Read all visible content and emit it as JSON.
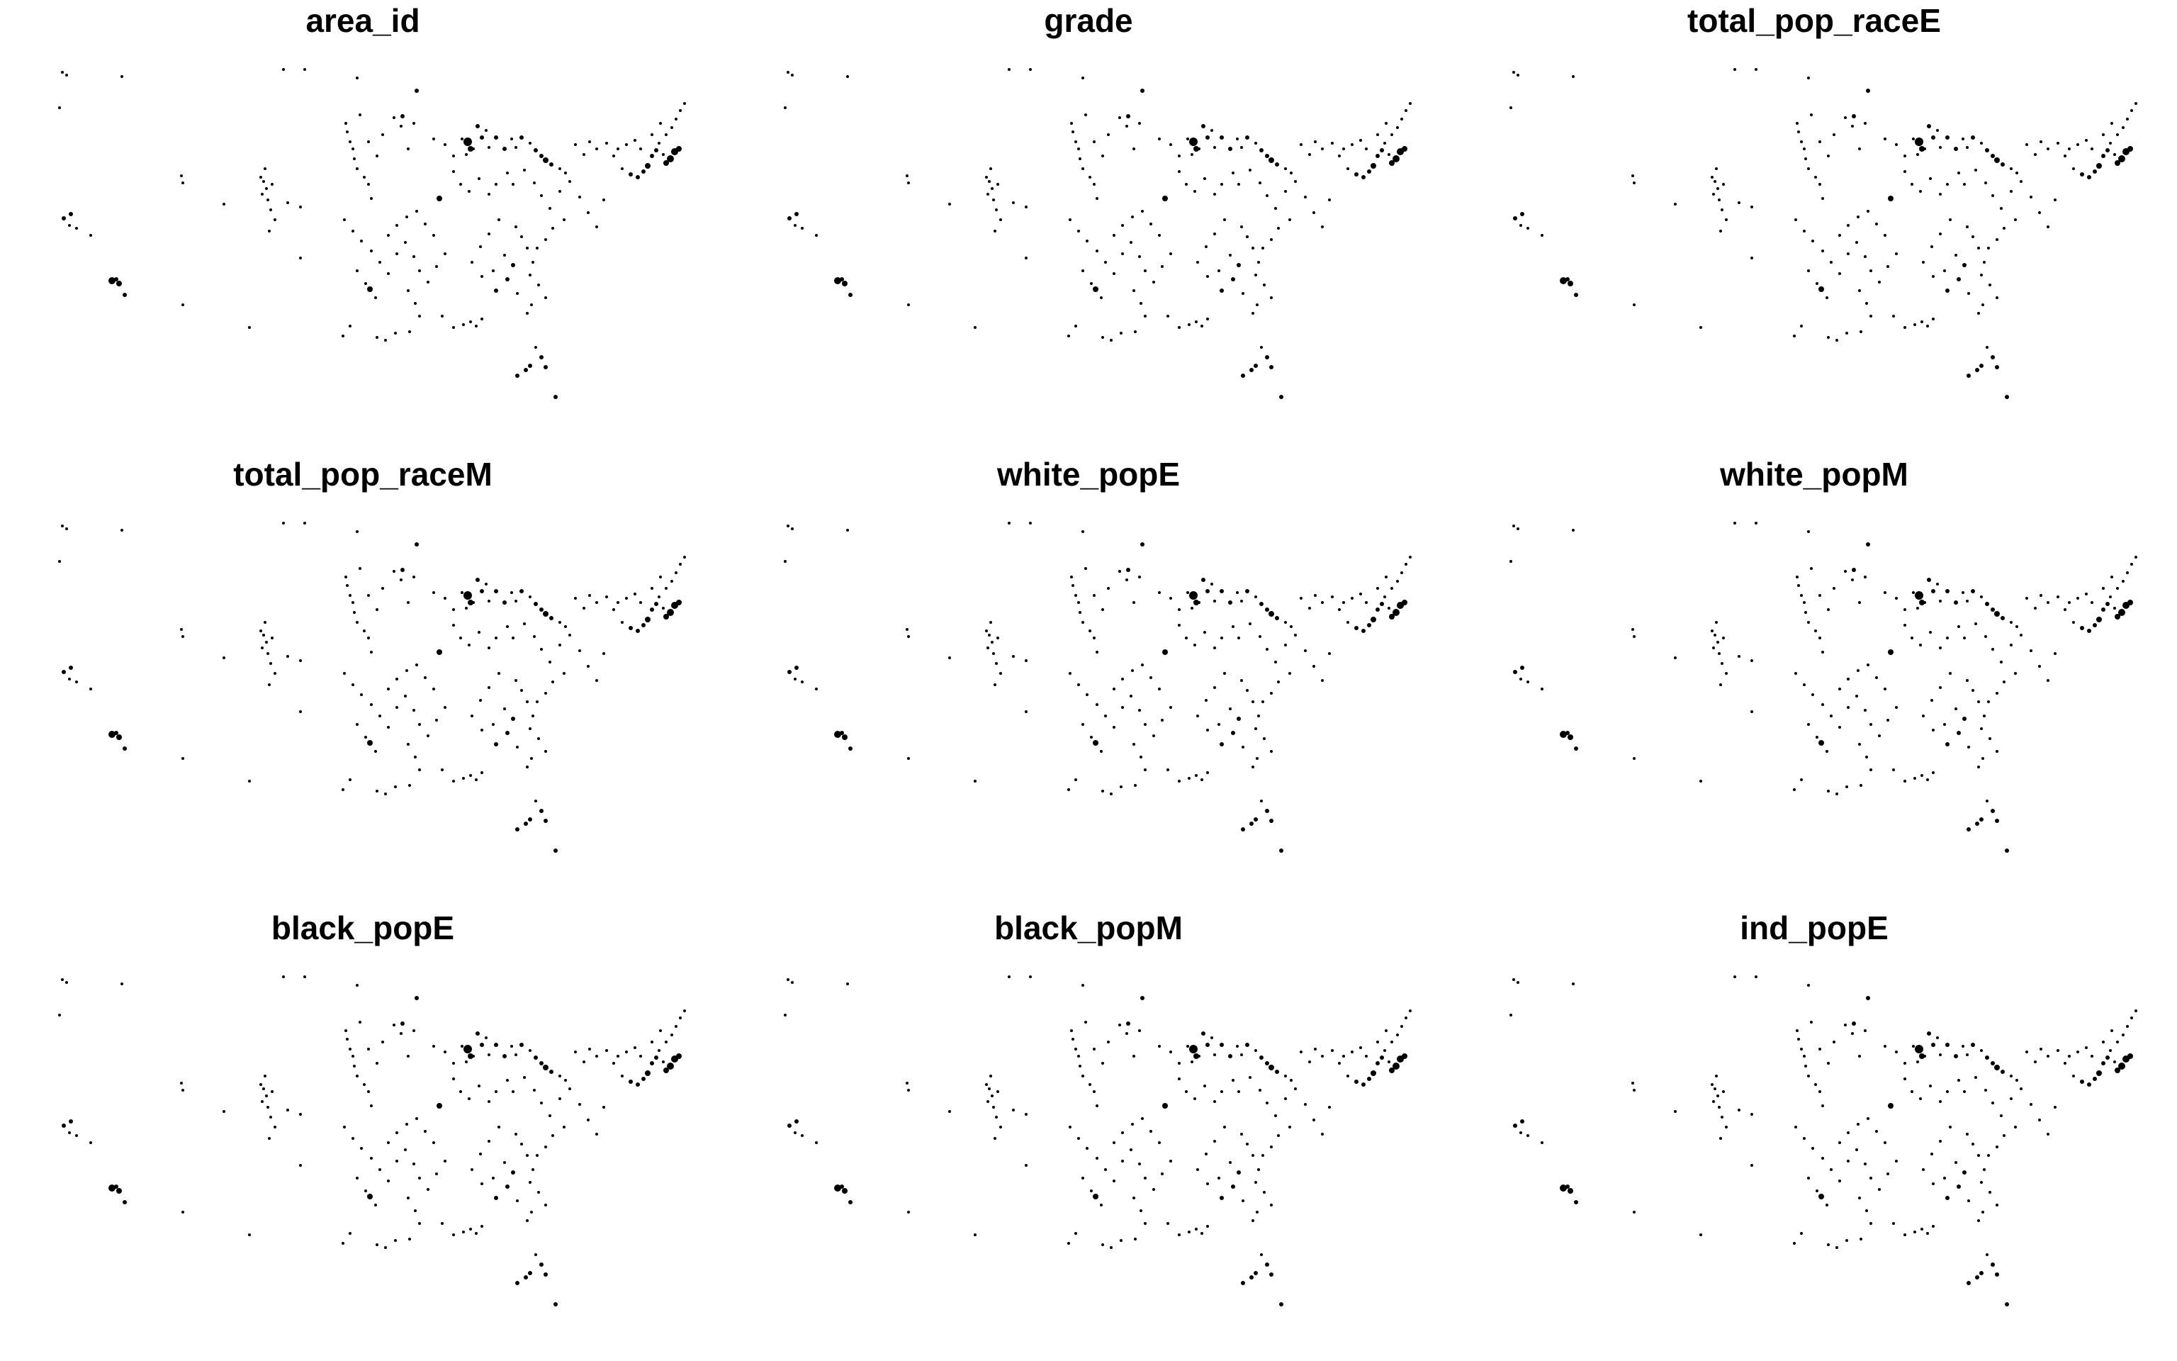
{
  "figure": {
    "layout": "3x3 small multiples",
    "background_color": "#ffffff",
    "point_color": "#000000",
    "axes_visible": false,
    "grid": false,
    "legend": "none"
  },
  "chart_data": [
    {
      "type": "scatter",
      "title": "area_id",
      "xlabel": "",
      "ylabel": "",
      "geometry": "point map, shared layout across panels"
    },
    {
      "type": "scatter",
      "title": "grade",
      "xlabel": "",
      "ylabel": "",
      "geometry": "point map, shared layout across panels"
    },
    {
      "type": "scatter",
      "title": "total_pop_raceE",
      "xlabel": "",
      "ylabel": "",
      "geometry": "point map, shared layout across panels"
    },
    {
      "type": "scatter",
      "title": "total_pop_raceM",
      "xlabel": "",
      "ylabel": "",
      "geometry": "point map, shared layout across panels"
    },
    {
      "type": "scatter",
      "title": "white_popE",
      "xlabel": "",
      "ylabel": "",
      "geometry": "point map, shared layout across panels"
    },
    {
      "type": "scatter",
      "title": "white_popM",
      "xlabel": "",
      "ylabel": "",
      "geometry": "point map, shared layout across panels"
    },
    {
      "type": "scatter",
      "title": "black_popE",
      "xlabel": "",
      "ylabel": "",
      "geometry": "point map, shared layout across panels"
    },
    {
      "type": "scatter",
      "title": "black_popM",
      "xlabel": "",
      "ylabel": "",
      "geometry": "point map, shared layout across panels"
    },
    {
      "type": "scatter",
      "title": "ind_popE",
      "xlabel": "",
      "ylabel": "",
      "geometry": "point map, shared layout across panels"
    }
  ]
}
